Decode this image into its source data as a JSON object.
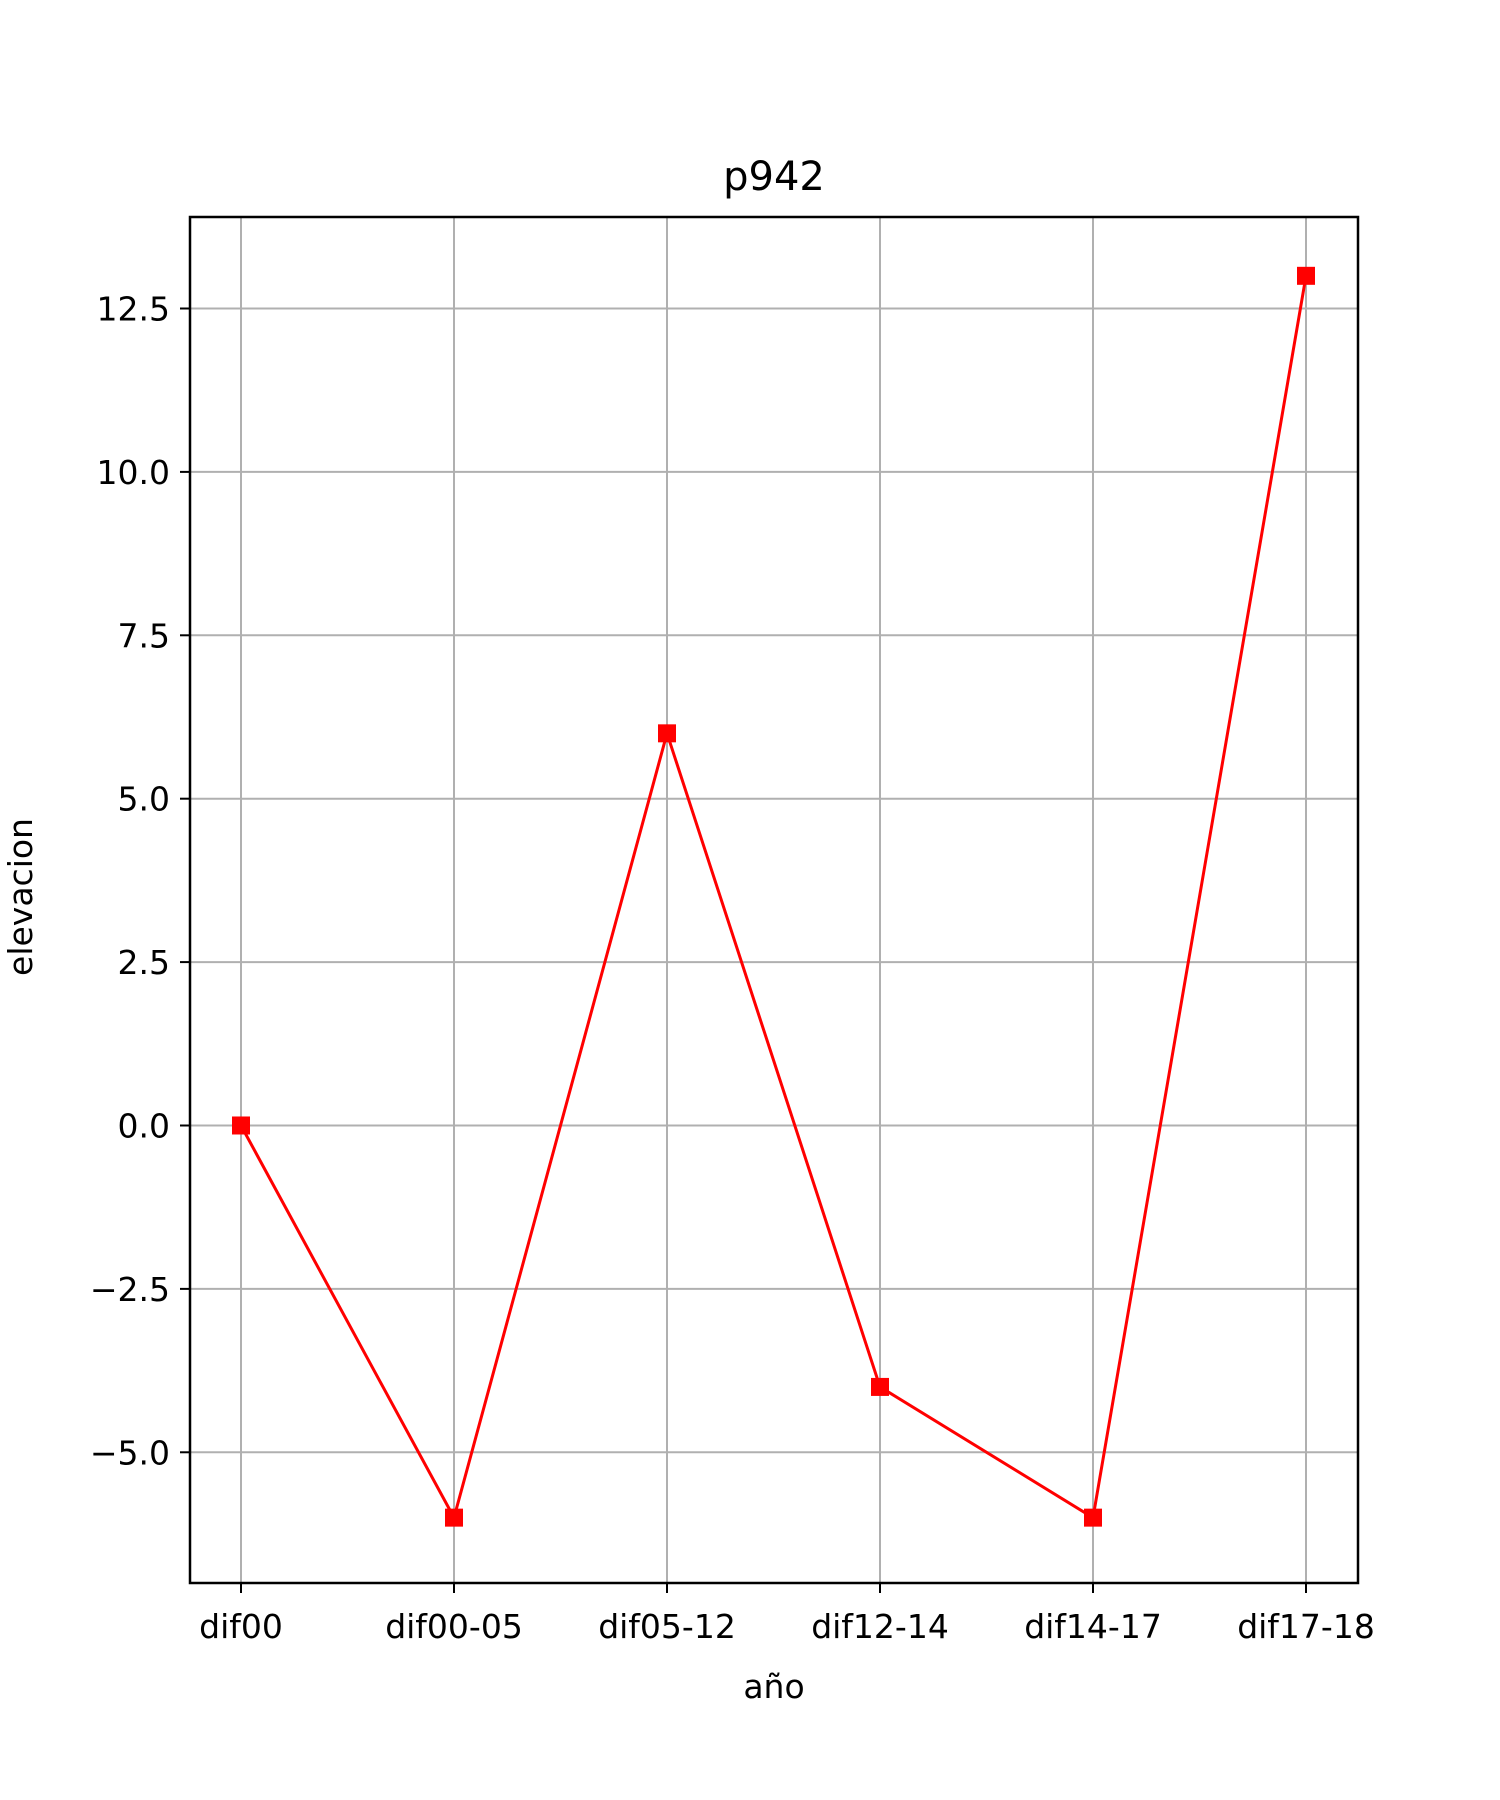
{
  "chart_data": {
    "type": "line",
    "title": "p942",
    "xlabel": "año",
    "ylabel": "elevacion",
    "categories": [
      "dif00",
      "dif00-05",
      "dif05-12",
      "dif12-14",
      "dif14-17",
      "dif17-18"
    ],
    "series": [
      {
        "values": [
          0,
          -6,
          6,
          -4,
          -6,
          13
        ],
        "color": "#ff0000",
        "marker": "square"
      }
    ],
    "ylim": [
      -7,
      13.9
    ],
    "yticks": [
      -5.0,
      -2.5,
      0.0,
      2.5,
      5.0,
      7.5,
      10.0,
      12.5
    ],
    "ytick_labels": [
      "−5.0",
      "−2.5",
      "0.0",
      "2.5",
      "5.0",
      "7.5",
      "10.0",
      "12.5"
    ],
    "grid": true,
    "legend": "none"
  }
}
